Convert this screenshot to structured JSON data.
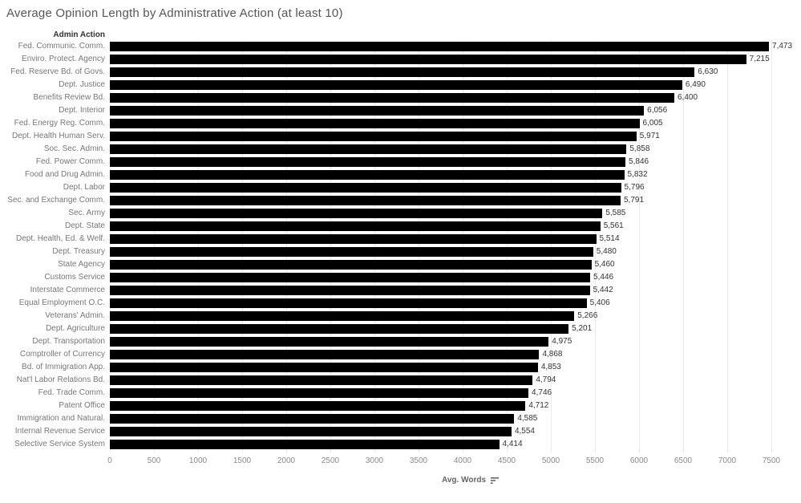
{
  "colors": {
    "background": "#ffffff",
    "bar": "#000000",
    "gridline": "#eaeaea",
    "title": "#565656",
    "row_label": "#787878",
    "value_label": "#333333",
    "tick_label": "#8a8a8a",
    "header": "#333333",
    "axis_title": "#666666"
  },
  "chart_data": {
    "type": "bar",
    "orientation": "horizontal",
    "title": "Average Opinion Length by Administrative Action (at least 10)",
    "row_header": "Admin Action",
    "xlabel": "Avg. Words",
    "sort_order": "descending",
    "sort_icon": "sort-descending-icon",
    "grid": true,
    "legend": false,
    "xlim": [
      0,
      7836
    ],
    "x_ticks": [
      0,
      500,
      1000,
      1500,
      2000,
      2500,
      3000,
      3500,
      4000,
      4500,
      5000,
      5500,
      6000,
      6500,
      7000,
      7500
    ],
    "categories": [
      "Fed. Communic. Comm.",
      "Enviro. Protect. Agency",
      "Fed. Reserve Bd. of Govs.",
      "Dept. Justice",
      "Benefits Review Bd.",
      "Dept. Interior",
      "Fed. Energy Reg. Comm.",
      "Dept. Health Human Serv.",
      "Soc. Sec. Admin.",
      "Fed. Power Comm.",
      "Food and Drug Admin.",
      "Dept. Labor",
      "Sec. and Exchange Comm.",
      "Sec. Army",
      "Dept. State",
      "Dept. Health, Ed. & Welf.",
      "Dept. Treasury",
      "State Agency",
      "Customs Service",
      "Interstate Commerce",
      "Equal Employment O.C.",
      "Veterans' Admin.",
      "Dept. Agriculture",
      "Dept. Transportation",
      "Comptroller of Currency",
      "Bd. of Immigration App.",
      "Nat'l Labor Relations Bd.",
      "Fed. Trade Comm.",
      "Patent Office",
      "Immigration and Natural.",
      "Internal Revenue Service",
      "Selective Service System"
    ],
    "values": [
      7473,
      7215,
      6630,
      6490,
      6400,
      6056,
      6005,
      5971,
      5858,
      5846,
      5832,
      5796,
      5791,
      5585,
      5561,
      5514,
      5480,
      5460,
      5446,
      5442,
      5406,
      5266,
      5201,
      4975,
      4868,
      4853,
      4794,
      4746,
      4712,
      4585,
      4554,
      4414
    ],
    "value_labels": [
      "7,473",
      "7,215",
      "6,630",
      "6,490",
      "6,400",
      "6,056",
      "6,005",
      "5,971",
      "5,858",
      "5,846",
      "5,832",
      "5,796",
      "5,791",
      "5,585",
      "5,561",
      "5,514",
      "5,480",
      "5,460",
      "5,446",
      "5,442",
      "5,406",
      "5,266",
      "5,201",
      "4,975",
      "4,868",
      "4,853",
      "4,794",
      "4,746",
      "4,712",
      "4,585",
      "4,554",
      "4,414"
    ]
  }
}
